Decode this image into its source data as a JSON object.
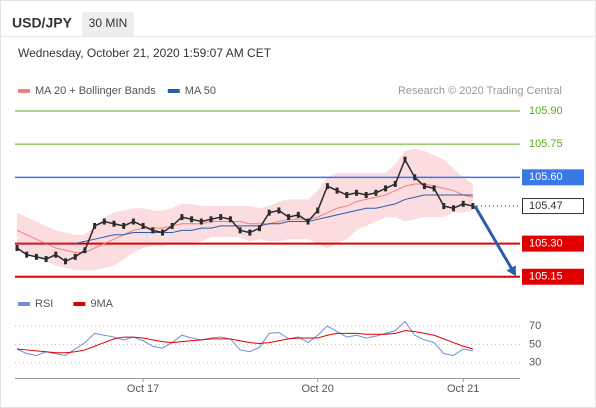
{
  "header": {
    "symbol": "USD/JPY",
    "interval": "30 MIN",
    "datetime": "Wednesday, October 21, 2020 1:59:07 AM CET"
  },
  "chart_data": [
    {
      "type": "price",
      "annotation": "Research © 2020 Trading Central",
      "categories": [
        null,
        null,
        null,
        null,
        null,
        null,
        null,
        null,
        null,
        null,
        null,
        null,
        null,
        "Oct 17",
        null,
        null,
        null,
        null,
        null,
        null,
        null,
        null,
        null,
        null,
        null,
        null,
        null,
        null,
        null,
        null,
        null,
        "Oct 20",
        null,
        null,
        null,
        null,
        null,
        null,
        null,
        null,
        null,
        null,
        null,
        null,
        null,
        null,
        "Oct 21",
        null
      ],
      "price": {
        "color": "#2b2b2b",
        "values": [
          105.28,
          105.25,
          105.24,
          105.23,
          105.25,
          105.22,
          105.24,
          105.27,
          105.38,
          105.4,
          105.39,
          105.38,
          105.4,
          105.38,
          105.36,
          105.35,
          105.38,
          105.42,
          105.41,
          105.4,
          105.41,
          105.42,
          105.41,
          105.36,
          105.35,
          105.37,
          105.44,
          105.45,
          105.42,
          105.43,
          105.4,
          105.45,
          105.56,
          105.54,
          105.52,
          105.53,
          105.52,
          105.53,
          105.55,
          105.57,
          105.68,
          105.6,
          105.56,
          105.55,
          105.47,
          105.46,
          105.48,
          105.47
        ]
      },
      "series": [
        {
          "name": "MA 20 + Bollinger Bands",
          "color": "#f08080",
          "band_color": "#fbdcdf",
          "values": [
            105.36,
            105.34,
            105.32,
            105.3,
            105.28,
            105.27,
            105.26,
            105.26,
            105.28,
            105.3,
            105.32,
            105.34,
            105.36,
            105.37,
            105.37,
            105.37,
            105.38,
            105.39,
            105.39,
            105.39,
            105.4,
            105.4,
            105.4,
            105.4,
            105.39,
            105.39,
            105.39,
            105.4,
            105.41,
            105.41,
            105.41,
            105.42,
            105.44,
            105.46,
            105.47,
            105.49,
            105.5,
            105.51,
            105.52,
            105.54,
            105.56,
            105.57,
            105.57,
            105.56,
            105.55,
            105.54,
            105.52,
            105.51
          ],
          "upper": [
            105.44,
            105.42,
            105.4,
            105.38,
            105.36,
            105.35,
            105.34,
            105.34,
            105.38,
            105.42,
            105.44,
            105.45,
            105.46,
            105.46,
            105.45,
            105.45,
            105.46,
            105.48,
            105.48,
            105.47,
            105.47,
            105.47,
            105.47,
            105.47,
            105.47,
            105.46,
            105.47,
            105.49,
            105.5,
            105.5,
            105.5,
            105.54,
            105.6,
            105.62,
            105.62,
            105.62,
            105.62,
            105.62,
            105.62,
            105.66,
            105.72,
            105.73,
            105.72,
            105.7,
            105.68,
            105.64,
            105.6,
            105.57
          ],
          "lower": [
            105.28,
            105.26,
            105.24,
            105.22,
            105.2,
            105.19,
            105.18,
            105.18,
            105.18,
            105.19,
            105.2,
            105.23,
            105.26,
            105.28,
            105.29,
            105.29,
            105.3,
            105.3,
            105.3,
            105.31,
            105.33,
            105.33,
            105.33,
            105.33,
            105.31,
            105.32,
            105.31,
            105.31,
            105.32,
            105.32,
            105.32,
            105.3,
            105.28,
            105.3,
            105.32,
            105.36,
            105.38,
            105.4,
            105.42,
            105.42,
            105.4,
            105.41,
            105.42,
            105.42,
            105.42,
            105.44,
            105.44,
            105.45
          ]
        },
        {
          "name": "MA 50",
          "color": "#2a5caa",
          "values": [
            105.3,
            105.3,
            105.3,
            105.3,
            105.3,
            105.3,
            105.3,
            105.31,
            105.32,
            105.33,
            105.34,
            105.34,
            105.35,
            105.35,
            105.35,
            105.35,
            105.35,
            105.36,
            105.36,
            105.37,
            105.37,
            105.38,
            105.38,
            105.38,
            105.38,
            105.38,
            105.39,
            105.39,
            105.4,
            105.4,
            105.4,
            105.41,
            105.42,
            105.43,
            105.44,
            105.45,
            105.46,
            105.46,
            105.47,
            105.48,
            105.5,
            105.51,
            105.52,
            105.52,
            105.52,
            105.52,
            105.52,
            105.52
          ]
        }
      ],
      "ylim": [
        105.09,
        105.95
      ],
      "levels": [
        {
          "value": 105.9,
          "label": "105.90",
          "color": "#5aaa1e",
          "box": "none",
          "line": "solid",
          "width": 1
        },
        {
          "value": 105.75,
          "label": "105.75",
          "color": "#5aaa1e",
          "box": "none",
          "line": "solid",
          "width": 1
        },
        {
          "value": 105.6,
          "label": "105.60",
          "color": "#3b78e7",
          "box": "fill",
          "line": "solid",
          "width": 1.5
        },
        {
          "value": 105.47,
          "label": "105.47",
          "color": "#333333",
          "box": "outline",
          "line": "dotted",
          "width": 1
        },
        {
          "value": 105.3,
          "label": "105.30",
          "color": "#e00000",
          "box": "fill",
          "line": "solid",
          "width": 2
        },
        {
          "value": 105.15,
          "label": "105.15",
          "color": "#e00000",
          "box": "fill",
          "line": "solid",
          "width": 2
        }
      ],
      "arrow_color": "#2a5caa"
    },
    {
      "type": "rsi",
      "series": [
        {
          "name": "RSI",
          "color": "#6b8fd6",
          "values": [
            45,
            40,
            38,
            42,
            40,
            38,
            45,
            52,
            62,
            60,
            58,
            55,
            58,
            54,
            48,
            46,
            52,
            60,
            57,
            55,
            57,
            58,
            56,
            44,
            42,
            47,
            62,
            63,
            56,
            58,
            52,
            60,
            70,
            64,
            58,
            60,
            57,
            59,
            62,
            65,
            75,
            60,
            55,
            52,
            40,
            38,
            45,
            43
          ]
        },
        {
          "name": "9MA",
          "color": "#e00000",
          "values": [
            45,
            44,
            43,
            42,
            41,
            41,
            42,
            44,
            48,
            52,
            56,
            58,
            58,
            57,
            55,
            53,
            52,
            53,
            54,
            55,
            56,
            56,
            56,
            54,
            52,
            51,
            52,
            54,
            56,
            57,
            57,
            57,
            60,
            62,
            62,
            62,
            61,
            61,
            61,
            62,
            65,
            64,
            62,
            60,
            56,
            52,
            48,
            45
          ]
        }
      ],
      "ylim": [
        20,
        82
      ],
      "yticks": [
        30,
        50,
        70
      ]
    }
  ]
}
